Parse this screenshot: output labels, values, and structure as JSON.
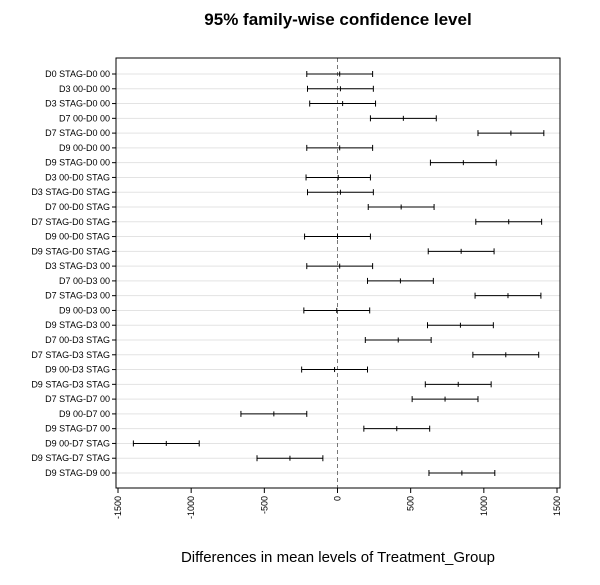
{
  "chart_data": {
    "type": "interval",
    "title": "95% family-wise confidence level",
    "xlabel": "Differences in mean levels of Treatment_Group",
    "xlim": [
      -1500,
      1500
    ],
    "xticks": [
      -1500,
      -1000,
      -500,
      0,
      500,
      1000,
      1500
    ],
    "reference_line": 0,
    "grid": true,
    "comparisons": [
      {
        "label": "D0 STAG-D0 00",
        "lwr": -210,
        "diff": 15,
        "upr": 240
      },
      {
        "label": "D3 00-D0 00",
        "lwr": -205,
        "diff": 20,
        "upr": 245
      },
      {
        "label": "D3 STAG-D0 00",
        "lwr": -190,
        "diff": 35,
        "upr": 260
      },
      {
        "label": "D7 00-D0 00",
        "lwr": 225,
        "diff": 450,
        "upr": 675
      },
      {
        "label": "D7 STAG-D0 00",
        "lwr": 960,
        "diff": 1185,
        "upr": 1410
      },
      {
        "label": "D9 00-D0 00",
        "lwr": -210,
        "diff": 15,
        "upr": 240
      },
      {
        "label": "D9 STAG-D0 00",
        "lwr": 635,
        "diff": 860,
        "upr": 1085
      },
      {
        "label": "D3 00-D0 STAG",
        "lwr": -215,
        "diff": 5,
        "upr": 225
      },
      {
        "label": "D3 STAG-D0 STAG",
        "lwr": -205,
        "diff": 20,
        "upr": 245
      },
      {
        "label": "D7 00-D0 STAG",
        "lwr": 210,
        "diff": 435,
        "upr": 660
      },
      {
        "label": "D7 STAG-D0 STAG",
        "lwr": 945,
        "diff": 1170,
        "upr": 1395
      },
      {
        "label": "D9 00-D0 STAG",
        "lwr": -225,
        "diff": 0,
        "upr": 225
      },
      {
        "label": "D9 STAG-D0 STAG",
        "lwr": 620,
        "diff": 845,
        "upr": 1070
      },
      {
        "label": "D3 STAG-D3 00",
        "lwr": -210,
        "diff": 15,
        "upr": 240
      },
      {
        "label": "D7 00-D3 00",
        "lwr": 205,
        "diff": 430,
        "upr": 655
      },
      {
        "label": "D7 STAG-D3 00",
        "lwr": 940,
        "diff": 1165,
        "upr": 1390
      },
      {
        "label": "D9 00-D3 00",
        "lwr": -230,
        "diff": -5,
        "upr": 220
      },
      {
        "label": "D9 STAG-D3 00",
        "lwr": 615,
        "diff": 840,
        "upr": 1065
      },
      {
        "label": "D7 00-D3 STAG",
        "lwr": 190,
        "diff": 415,
        "upr": 640
      },
      {
        "label": "D7 STAG-D3 STAG",
        "lwr": 925,
        "diff": 1150,
        "upr": 1375
      },
      {
        "label": "D9 00-D3 STAG",
        "lwr": -245,
        "diff": -20,
        "upr": 205
      },
      {
        "label": "D9 STAG-D3 STAG",
        "lwr": 600,
        "diff": 825,
        "upr": 1050
      },
      {
        "label": "D7 STAG-D7 00",
        "lwr": 510,
        "diff": 735,
        "upr": 960
      },
      {
        "label": "D9 00-D7 00",
        "lwr": -660,
        "diff": -435,
        "upr": -210
      },
      {
        "label": "D9 STAG-D7 00",
        "lwr": 180,
        "diff": 405,
        "upr": 630
      },
      {
        "label": "D9 00-D7 STAG",
        "lwr": -1395,
        "diff": -1170,
        "upr": -945
      },
      {
        "label": "D9 STAG-D7 STAG",
        "lwr": -550,
        "diff": -325,
        "upr": -100
      },
      {
        "label": "D9 STAG-D9 00",
        "lwr": 625,
        "diff": 850,
        "upr": 1075
      }
    ]
  }
}
